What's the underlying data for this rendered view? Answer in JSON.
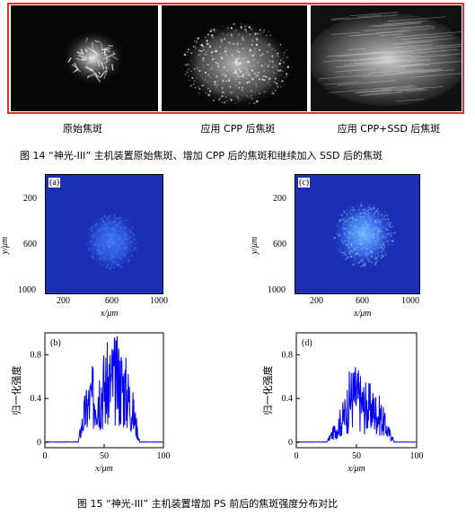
{
  "top_figure": {
    "photos": [
      {
        "caption": "原始焦斑"
      },
      {
        "caption": "应用 CPP 后焦斑"
      },
      {
        "caption": "应用 CPP+SSD 后焦斑"
      }
    ],
    "figure_caption": "图 14 “神光-III” 主机装置原始焦斑、增加 CPP 后的焦斑和继续加入 SSD 后的焦斑"
  },
  "bottom_figure": {
    "figure_caption": "图 15 “神光-III” 主机装置增加 PS 前后的焦斑强度分布对比",
    "colors": {
      "map_bg": "#1a2fb4",
      "line": "#0000ee"
    },
    "maps": [
      {
        "label": "(a)",
        "xlabel": "x/μm",
        "ylabel": "y/μm",
        "xticks": [
          "200",
          "600",
          "1000"
        ],
        "yticks": [
          "200",
          "600",
          "1000"
        ]
      },
      {
        "label": "(c)",
        "xlabel": "x/μm",
        "ylabel": "y/μm",
        "xticks": [
          "200",
          "600",
          "1000"
        ],
        "yticks": [
          "200",
          "600",
          "1000"
        ]
      }
    ]
  },
  "chart_data": [
    {
      "type": "line",
      "label": "(b)",
      "xlabel": "x/μm",
      "ylabel": "归一化强度",
      "xlim": [
        0,
        100
      ],
      "ylim": [
        -0.05,
        1.0
      ],
      "xticks": [
        "0",
        "50",
        "100"
      ],
      "yticks": [
        "0",
        "0.4",
        "0.8"
      ],
      "envelope": {
        "x": [
          0,
          28,
          33,
          38,
          45,
          52,
          58,
          65,
          72,
          76,
          80,
          100
        ],
        "y": [
          0.0,
          0.0,
          0.35,
          0.55,
          0.7,
          0.75,
          0.85,
          0.8,
          0.55,
          0.3,
          0.0,
          0.0
        ]
      }
    },
    {
      "type": "line",
      "label": "(d)",
      "xlabel": "x/μm",
      "ylabel": "归一化强度",
      "xlim": [
        0,
        100
      ],
      "ylim": [
        -0.05,
        1.0
      ],
      "xticks": [
        "0",
        "50",
        "100"
      ],
      "yticks": [
        "0",
        "0.4",
        "0.8"
      ],
      "envelope": {
        "x": [
          0,
          25,
          32,
          40,
          45,
          50,
          55,
          62,
          70,
          76,
          82,
          100
        ],
        "y": [
          0.0,
          0.0,
          0.15,
          0.35,
          0.6,
          0.62,
          0.5,
          0.45,
          0.35,
          0.15,
          0.0,
          0.0
        ]
      }
    }
  ]
}
